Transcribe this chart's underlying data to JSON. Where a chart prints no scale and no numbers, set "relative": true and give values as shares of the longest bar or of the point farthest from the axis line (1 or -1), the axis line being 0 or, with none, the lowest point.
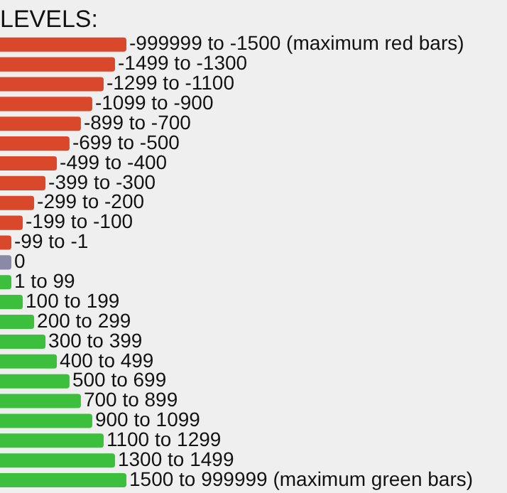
{
  "chart_data": {
    "type": "bar",
    "orientation": "horizontal",
    "relative": true,
    "title": "LEVELS:",
    "categories": [
      "-999999 to -1500 (maximum red bars)",
      "-1499 to -1300",
      "-1299 to -1100",
      "-1099 to -900",
      "-899 to -700",
      "-699 to -500",
      "-499 to -400",
      "-399 to -300",
      "-299 to -200",
      "-199 to -100",
      "-99 to -1",
      "0",
      "1 to 99",
      "100 to 199",
      "200 to 299",
      "300 to 399",
      "400 to 499",
      "500 to 699",
      "700 to 899",
      "900 to 1099",
      "1100 to 1299",
      "1300 to 1499",
      "1500 to 999999 (maximum green bars)"
    ],
    "values": [
      1,
      0.91,
      0.82,
      0.73,
      0.64,
      0.55,
      0.45,
      0.36,
      0.27,
      0.18,
      0.09,
      0.09,
      0.09,
      0.18,
      0.27,
      0.36,
      0.45,
      0.55,
      0.64,
      0.73,
      0.82,
      0.91,
      1
    ],
    "colors": [
      "#d9482a",
      "#d9482a",
      "#d9482a",
      "#d9482a",
      "#d9482a",
      "#d9482a",
      "#d9482a",
      "#d9482a",
      "#d9482a",
      "#d9482a",
      "#d9482a",
      "#8a8aa8",
      "#3cbf3c",
      "#3cbf3c",
      "#3cbf3c",
      "#3cbf3c",
      "#3cbf3c",
      "#3cbf3c",
      "#3cbf3c",
      "#3cbf3c",
      "#3cbf3c",
      "#3cbf3c",
      "#3cbf3c"
    ],
    "legend": false
  }
}
